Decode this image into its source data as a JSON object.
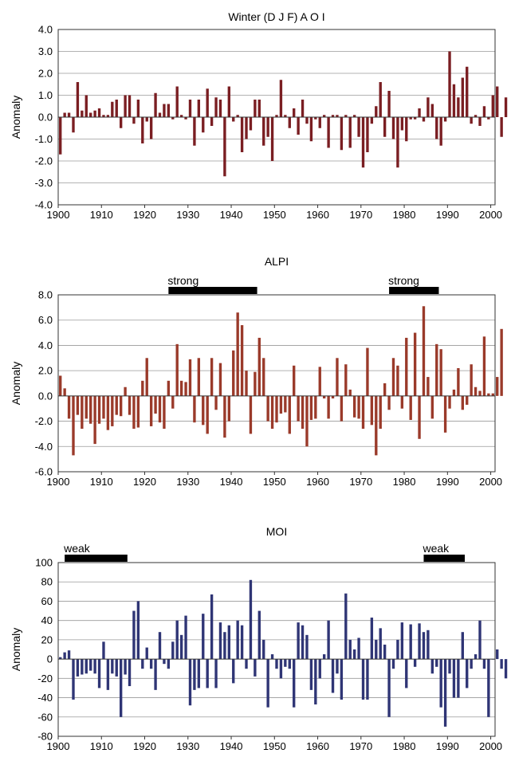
{
  "chart_data": [
    {
      "type": "bar",
      "title": "Winter (D J F) A O I",
      "xlabel": "",
      "ylabel": "Anomaly",
      "ylim": [
        -4,
        4
      ],
      "yticks": [
        -4,
        -3,
        -2,
        -1,
        0,
        1,
        2,
        3,
        4
      ],
      "ytick_labels": [
        "-4.0",
        "-3.0",
        "-2.0",
        "-1.0",
        "0.0",
        "1.0",
        "2.0",
        "3.0",
        "4.0"
      ],
      "xlim": [
        1900,
        2001
      ],
      "xticks": [
        1900,
        1910,
        1920,
        1930,
        1940,
        1950,
        1960,
        1970,
        1980,
        1990,
        2000
      ],
      "xtick_labels": [
        "1900",
        "1910",
        "1920",
        "1930",
        "1940",
        "1950",
        "1960",
        "1970",
        "1980",
        "1990",
        "2000"
      ],
      "grid": true,
      "color": "#7a1e22",
      "bands": [],
      "x_start": 1900,
      "values": [
        -1.7,
        0.2,
        0.2,
        -0.7,
        1.6,
        0.3,
        1.0,
        0.2,
        0.3,
        0.4,
        0.1,
        0.1,
        0.7,
        0.8,
        -0.5,
        1.0,
        1.0,
        -0.3,
        0.8,
        -1.2,
        -0.2,
        -1.0,
        1.1,
        0.2,
        0.6,
        0.6,
        -0.1,
        1.4,
        0.1,
        -0.1,
        0.8,
        -1.3,
        0.8,
        -0.7,
        1.3,
        -0.4,
        0.9,
        0.8,
        -2.7,
        1.4,
        -0.2,
        0.1,
        -1.6,
        -1.0,
        -0.6,
        0.8,
        0.8,
        -1.3,
        -0.9,
        -2.0,
        0.1,
        1.7,
        0.1,
        -0.5,
        0.4,
        -0.8,
        0.8,
        -0.3,
        -1.1,
        -0.1,
        -0.5,
        0.1,
        -1.4,
        0.1,
        0.1,
        -1.5,
        0.1,
        -1.4,
        0.1,
        -0.9,
        -2.3,
        -1.6,
        -0.3,
        0.5,
        1.6,
        -0.9,
        1.2,
        -1.0,
        -2.3,
        -0.6,
        -1.1,
        -0.1,
        -0.1,
        0.4,
        -0.2,
        0.9,
        0.6,
        -1.0,
        -1.3,
        -0.2,
        3.0,
        1.5,
        0.9,
        1.8,
        2.3,
        -0.3,
        0.1,
        -0.4,
        0.5,
        -0.1,
        1.0,
        1.4,
        -0.9,
        0.9
      ]
    },
    {
      "type": "bar",
      "title": "ALPI",
      "xlabel": "",
      "ylabel": "Anomaly",
      "ylim": [
        -6,
        8
      ],
      "yticks": [
        -6,
        -4,
        -2,
        0,
        2,
        4,
        6,
        8
      ],
      "ytick_labels": [
        "-6.0",
        "-4.0",
        "-2.0",
        "0.0",
        "2.0",
        "4.0",
        "6.0",
        "8.0"
      ],
      "xlim": [
        1900,
        2001
      ],
      "xticks": [
        1900,
        1910,
        1920,
        1930,
        1940,
        1950,
        1960,
        1970,
        1980,
        1990,
        2000
      ],
      "xtick_labels": [
        "1900",
        "1910",
        "1920",
        "1930",
        "1940",
        "1950",
        "1960",
        "1970",
        "1980",
        "1990",
        "2000"
      ],
      "grid": true,
      "color": "#9a3a2a",
      "bands": [
        {
          "label": "strong",
          "start": 1925.5,
          "end": 1946
        },
        {
          "label": "strong",
          "start": 1976.5,
          "end": 1988
        }
      ],
      "x_start": 1900,
      "values": [
        1.6,
        0.6,
        -1.8,
        -4.7,
        -1.5,
        -2.6,
        -1.8,
        -2.2,
        -3.8,
        -2.2,
        -1.8,
        -2.7,
        -2.4,
        -1.5,
        -1.6,
        0.7,
        -1.5,
        -2.6,
        -2.5,
        1.2,
        3.0,
        -2.4,
        -1.4,
        -2.1,
        -2.6,
        1.2,
        -1.0,
        4.1,
        1.2,
        1.1,
        2.9,
        -2.1,
        3.0,
        -2.3,
        -3.0,
        3.0,
        -1.1,
        2.6,
        -3.3,
        -2.0,
        3.6,
        6.6,
        5.6,
        2.0,
        -3.0,
        1.9,
        4.6,
        3.0,
        -2.0,
        -2.6,
        -2.1,
        -1.4,
        -1.3,
        -3.0,
        2.4,
        -2.0,
        -2.6,
        -4.0,
        -1.9,
        -1.8,
        2.3,
        -0.2,
        -1.8,
        -0.2,
        3.0,
        -2.0,
        2.5,
        0.5,
        -1.7,
        -1.8,
        -2.6,
        3.8,
        -2.3,
        -4.7,
        -2.6,
        1.0,
        -1.1,
        3.0,
        2.4,
        -1.0,
        4.6,
        -1.9,
        5.0,
        -3.4,
        7.1,
        1.5,
        -1.8,
        4.1,
        3.7,
        -2.9,
        -1.0,
        0.5,
        2.2,
        -1.1,
        -0.7,
        2.5,
        0.7,
        0.4,
        4.7,
        0.2,
        0.2,
        1.5,
        5.3
      ]
    },
    {
      "type": "bar",
      "title": "MOI",
      "xlabel": "",
      "ylabel": "Anomaly",
      "ylim": [
        -80,
        100
      ],
      "yticks": [
        -80,
        -60,
        -40,
        -20,
        0,
        20,
        40,
        60,
        80,
        100
      ],
      "ytick_labels": [
        "-80",
        "-60",
        "-40",
        "-20",
        "0",
        "20",
        "40",
        "60",
        "80",
        "100"
      ],
      "xlim": [
        1900,
        2001
      ],
      "xticks": [
        1900,
        1910,
        1920,
        1930,
        1940,
        1950,
        1960,
        1970,
        1980,
        1990,
        2000
      ],
      "xtick_labels": [
        "1900",
        "1910",
        "1920",
        "1930",
        "1940",
        "1950",
        "1960",
        "1970",
        "1980",
        "1990",
        "2000"
      ],
      "grid": true,
      "color": "#2f3575",
      "bands": [
        {
          "label": "weak",
          "start": 1901.5,
          "end": 1916
        },
        {
          "label": "weak",
          "start": 1984.5,
          "end": 1994
        }
      ],
      "x_start": 1900,
      "values": [
        2,
        7,
        9,
        -42,
        -18,
        -16,
        -15,
        -12,
        -15,
        -30,
        18,
        -32,
        -15,
        -18,
        -60,
        -16,
        -28,
        50,
        60,
        -10,
        12,
        -10,
        -32,
        28,
        -5,
        -10,
        18,
        40,
        25,
        45,
        -48,
        -32,
        -30,
        47,
        -30,
        67,
        -30,
        38,
        28,
        35,
        -25,
        40,
        35,
        -10,
        82,
        -18,
        50,
        20,
        -50,
        5,
        -10,
        -20,
        -8,
        -10,
        -50,
        38,
        35,
        25,
        -32,
        -47,
        -20,
        5,
        40,
        -35,
        -15,
        -42,
        68,
        20,
        10,
        22,
        -42,
        -42,
        43,
        20,
        32,
        15,
        -60,
        -10,
        20,
        38,
        -30,
        36,
        -8,
        37,
        28,
        30,
        -15,
        -8,
        -50,
        -70,
        -15,
        -40,
        -40,
        28,
        -30,
        -10,
        5,
        40,
        -10,
        -60,
        0,
        10,
        -10,
        -20
      ]
    }
  ]
}
